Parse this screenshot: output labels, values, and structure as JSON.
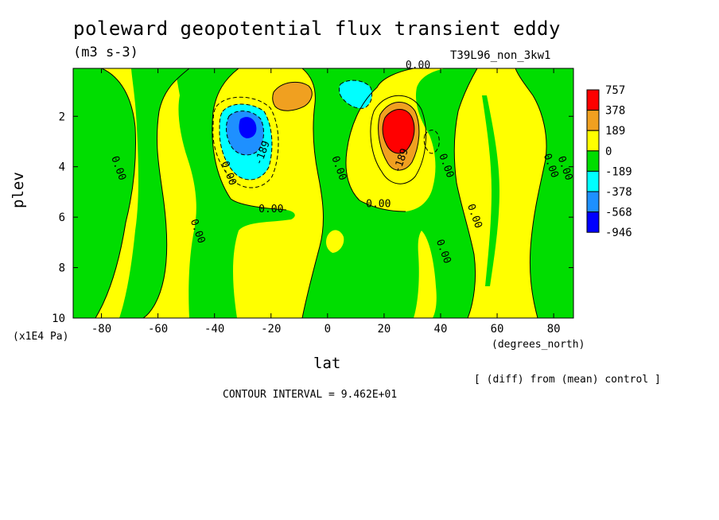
{
  "chart_data": {
    "type": "heatmap",
    "title": "poleward geopotential flux transient eddy",
    "units": "(m3 s-3)",
    "run_name": "T39L96_non_3kw1",
    "xlabel": "lat",
    "x_units": "(degrees_north)",
    "ylabel": "plev",
    "y_units": "(x1E4 Pa)",
    "xlim": [
      -90,
      87
    ],
    "ylim": [
      10,
      0.1
    ],
    "x_ticks": [
      -80,
      -60,
      -40,
      -20,
      0,
      20,
      40,
      60,
      80
    ],
    "y_ticks": [
      2,
      4,
      6,
      8,
      10
    ],
    "note": "[ (diff) from (mean) control ]",
    "contour_interval_text": "CONTOUR INTERVAL = 9.462E+01",
    "contour_interval": 94.62,
    "colorbar": {
      "levels": [
        757,
        378,
        189,
        0,
        -189,
        -378,
        -568,
        -946
      ],
      "colors": [
        "#ff0000",
        "#f0a020",
        "#ffff00",
        "#00dd00",
        "#00ffff",
        "#1e90ff",
        "#0000ff"
      ]
    },
    "features": [
      {
        "kind": "max",
        "lat": 26,
        "plev": 2.5,
        "value": 757
      },
      {
        "kind": "max",
        "lat": -10,
        "plev": 1.1,
        "value": 378
      },
      {
        "kind": "min",
        "lat": -26,
        "plev": 2.5,
        "value": -568
      },
      {
        "kind": "min",
        "lat": 8,
        "plev": 0.9,
        "value": -378
      }
    ],
    "contour_labels": [
      {
        "text": "0.00",
        "lat": 32,
        "plev": 0.1
      },
      {
        "text": "0.00",
        "lat": -75,
        "plev": 4.1
      },
      {
        "text": "0.00",
        "lat": -36,
        "plev": 4.3
      },
      {
        "text": "0.00",
        "lat": -47,
        "plev": 6.6
      },
      {
        "text": "-189",
        "lat": -22,
        "plev": 3.5
      },
      {
        "text": "0.00",
        "lat": -20,
        "plev": 5.8
      },
      {
        "text": "0.00",
        "lat": 3,
        "plev": 4.1
      },
      {
        "text": "-189",
        "lat": 27,
        "plev": 3.8
      },
      {
        "text": "0.00",
        "lat": 18,
        "plev": 5.6
      },
      {
        "text": "0.00",
        "lat": 41,
        "plev": 4.0
      },
      {
        "text": "0.00",
        "lat": 51,
        "plev": 6.0
      },
      {
        "text": "0.00",
        "lat": 40,
        "plev": 7.4
      },
      {
        "text": "0.00",
        "lat": 78,
        "plev": 4.0
      },
      {
        "text": "0.00",
        "lat": 83,
        "plev": 4.1
      }
    ]
  }
}
